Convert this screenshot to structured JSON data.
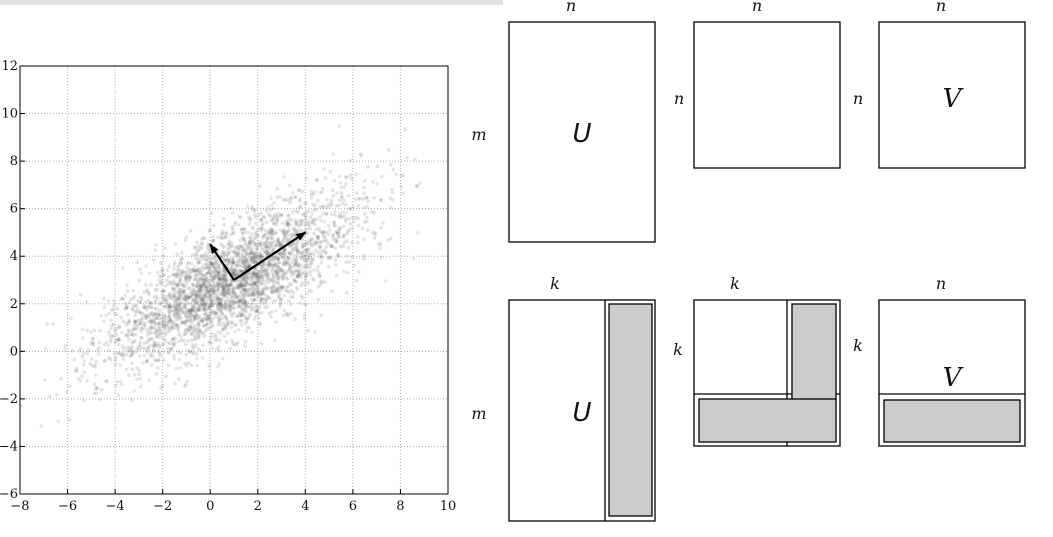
{
  "chart_data": {
    "type": "scatter",
    "title": "",
    "xlabel": "",
    "ylabel": "",
    "xlim": [
      -8,
      10
    ],
    "ylim": [
      -6,
      12
    ],
    "x_ticks": [
      "−8",
      "−6",
      "−4",
      "−2",
      "0",
      "2",
      "4",
      "6",
      "8",
      "10"
    ],
    "y_ticks": [
      "−6",
      "−4",
      "−2",
      "0",
      "2",
      "4",
      "6",
      "8",
      "10",
      "12"
    ],
    "grid": true,
    "point_color": "#555555",
    "distribution": {
      "center": [
        1,
        3
      ],
      "principal_direction": [
        0.866,
        0.5
      ],
      "std_major": 3,
      "std_minor": 1,
      "count": 3000
    },
    "arrows": [
      {
        "from": [
          1,
          3
        ],
        "to": [
          4,
          5
        ]
      },
      {
        "from": [
          1,
          3
        ],
        "to": [
          0,
          4.5
        ]
      }
    ]
  },
  "diagram": {
    "full": {
      "U": {
        "label": "U",
        "top": "n",
        "left": "m"
      },
      "S": {
        "top": "n",
        "left": "n"
      },
      "V": {
        "label": "V",
        "top": "n",
        "left": "n"
      }
    },
    "truncated": {
      "U": {
        "label": "U",
        "top": "k",
        "left": "m"
      },
      "S": {
        "top": "k",
        "left": "k"
      },
      "V": {
        "label": "V",
        "top": "n",
        "left": "k"
      }
    },
    "shade_color": "#cccccc"
  }
}
